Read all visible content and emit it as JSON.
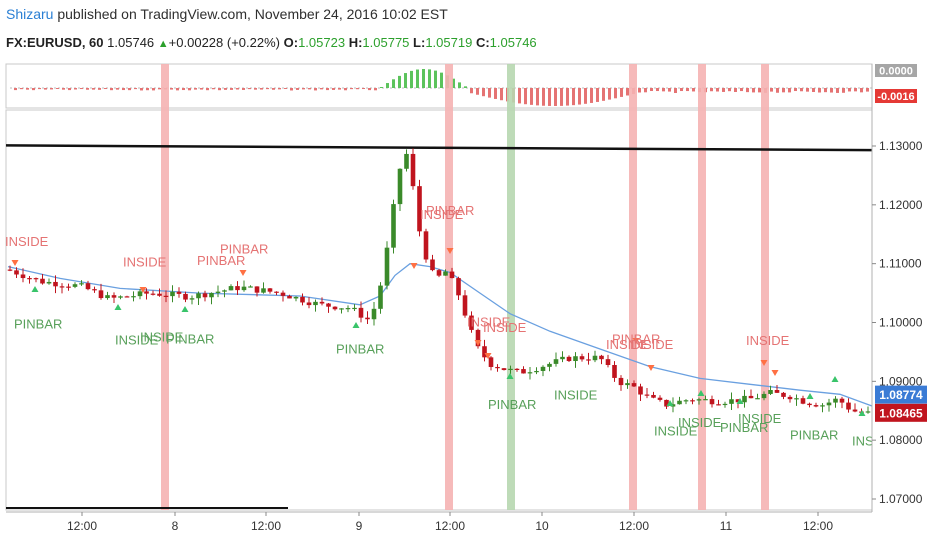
{
  "header": {
    "author": "Shizaru",
    "published": "published on TradingView.com, November 24, 2016 10:02 EST",
    "symbol": "FX:EURUSD, 60",
    "last": "1.05746",
    "change": "+0.00228 (+0.22%)",
    "o_label": "O:",
    "o": "1.05723",
    "h_label": "H:",
    "h": "1.05775",
    "l_label": "L:",
    "l": "1.05719",
    "c_label": "C:",
    "c": "1.05746"
  },
  "colors": {
    "up": "#3a8a2a",
    "down": "#c0141e",
    "ma": "#6aa0e0",
    "band_red": "#f5b3b3",
    "band_green": "#b7d7b0",
    "label_red": "#e57373",
    "label_green": "#58a05a"
  },
  "oscillator": {
    "tags": [
      "0.0000",
      "-0.0016"
    ]
  },
  "chart_data": {
    "type": "candlestick",
    "ylim": [
      1.0655,
      1.1365
    ],
    "y_ticks": [
      "1.13000",
      "1.12000",
      "1.11000",
      "1.10000",
      "1.09000",
      "1.08000",
      "1.07000"
    ],
    "x_ticks": [
      "12:00",
      "8",
      "12:00",
      "9",
      "12:00",
      "10",
      "12:00",
      "11",
      "12:00"
    ],
    "price_tags": [
      {
        "value": "1.08774",
        "price": 1.08774,
        "color": "#3a7bd5"
      },
      {
        "value": "1.08465",
        "price": 1.08465,
        "color": "#c0141e"
      }
    ],
    "trendline": {
      "start_price": 1.1301,
      "end_price": 1.1293
    },
    "annotations": [
      {
        "text": "INSIDE",
        "x": 5,
        "price": 1.113,
        "color": "red"
      },
      {
        "text": "PINBAR",
        "x": 14,
        "price": 1.099,
        "color": "green"
      },
      {
        "text": "INSIDE",
        "x": 123,
        "price": 1.1095,
        "color": "red"
      },
      {
        "text": "PINBAR",
        "x": 220,
        "price": 1.1117,
        "color": "red"
      },
      {
        "text": "PINBAR",
        "x": 197,
        "price": 1.1098,
        "color": "red"
      },
      {
        "text": "INSIDE",
        "x": 115,
        "price": 1.0963,
        "color": "green"
      },
      {
        "text": "INSIDE",
        "x": 140,
        "price": 1.0968,
        "color": "green"
      },
      {
        "text": "PINBAR",
        "x": 166,
        "price": 1.0964,
        "color": "green"
      },
      {
        "text": "PINBAR",
        "x": 336,
        "price": 1.0947,
        "color": "green"
      },
      {
        "text": "PINBAR",
        "x": 426,
        "price": 1.1183,
        "color": "red"
      },
      {
        "text": "INSIDE",
        "x": 420,
        "price": 1.1176,
        "color": "red"
      },
      {
        "text": "INSIDE",
        "x": 467,
        "price": 1.0993,
        "color": "red"
      },
      {
        "text": "INSIDE",
        "x": 483,
        "price": 1.0984,
        "color": "red"
      },
      {
        "text": "PINBAR",
        "x": 488,
        "price": 1.0853,
        "color": "green"
      },
      {
        "text": "INSIDE",
        "x": 554,
        "price": 1.0869,
        "color": "green"
      },
      {
        "text": "PINBAR",
        "x": 612,
        "price": 1.0964,
        "color": "red"
      },
      {
        "text": "INSIDE",
        "x": 606,
        "price": 1.0955,
        "color": "red"
      },
      {
        "text": "INSIDE",
        "x": 630,
        "price": 1.0955,
        "color": "red"
      },
      {
        "text": "INSIDE",
        "x": 654,
        "price": 1.0808,
        "color": "green"
      },
      {
        "text": "INSIDE",
        "x": 678,
        "price": 1.0822,
        "color": "green"
      },
      {
        "text": "PINBAR",
        "x": 720,
        "price": 1.0814,
        "color": "green"
      },
      {
        "text": "INSIDE",
        "x": 738,
        "price": 1.0829,
        "color": "green"
      },
      {
        "text": "INSIDE",
        "x": 746,
        "price": 1.0962,
        "color": "red"
      },
      {
        "text": "PINBAR",
        "x": 790,
        "price": 1.0801,
        "color": "green"
      },
      {
        "text": "INS",
        "x": 852,
        "price": 1.0791,
        "color": "green"
      }
    ]
  }
}
